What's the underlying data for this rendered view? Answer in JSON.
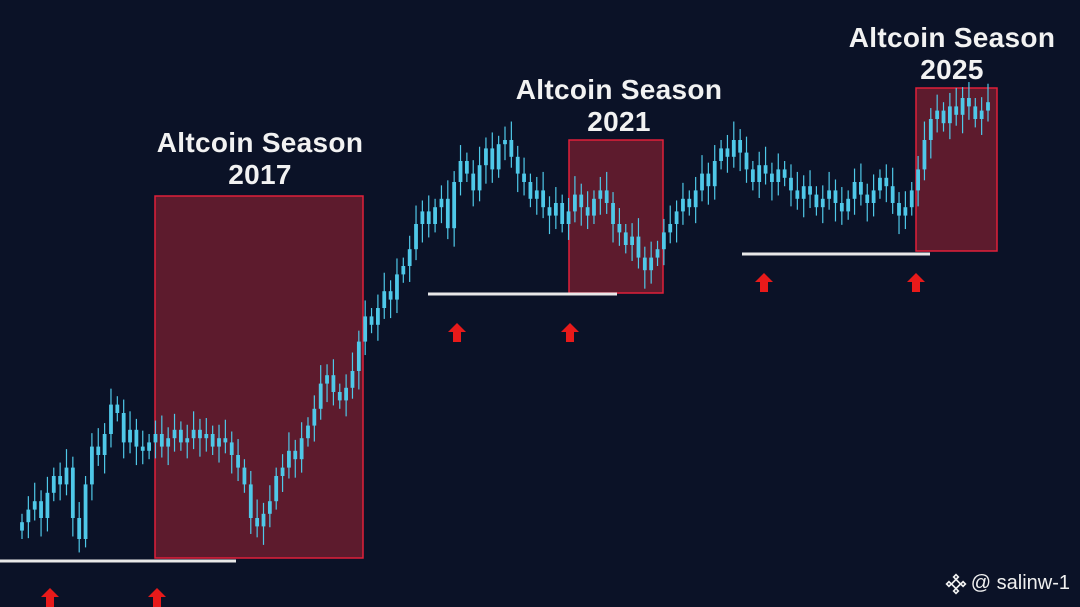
{
  "chart_data": {
    "type": "candlestick",
    "title": "",
    "xlabel": "",
    "ylabel": "",
    "grid": false,
    "colors": {
      "background": "#0b1227",
      "candle": "#4fc8e8",
      "season_box_fill": "#7a1f30",
      "season_box_stroke": "#e0203a",
      "support_line": "#e8e8e8",
      "arrow": "#e81a1a"
    },
    "candles_close": [
      0.09,
      0.12,
      0.14,
      0.1,
      0.16,
      0.2,
      0.18,
      0.22,
      0.1,
      0.05,
      0.18,
      0.27,
      0.25,
      0.3,
      0.37,
      0.35,
      0.28,
      0.31,
      0.27,
      0.26,
      0.28,
      0.3,
      0.27,
      0.29,
      0.31,
      0.28,
      0.29,
      0.31,
      0.29,
      0.3,
      0.27,
      0.29,
      0.28,
      0.25,
      0.22,
      0.18,
      0.1,
      0.08,
      0.11,
      0.14,
      0.2,
      0.22,
      0.26,
      0.24,
      0.29,
      0.32,
      0.36,
      0.42,
      0.44,
      0.4,
      0.38,
      0.41,
      0.45,
      0.52,
      0.58,
      0.56,
      0.6,
      0.64,
      0.62,
      0.68,
      0.7,
      0.74,
      0.8,
      0.83,
      0.8,
      0.84,
      0.86,
      0.79,
      0.9,
      0.95,
      0.92,
      0.88,
      0.94,
      0.98,
      0.93,
      0.99,
      1.0,
      0.96,
      0.92,
      0.9,
      0.86,
      0.88,
      0.84,
      0.82,
      0.85,
      0.8,
      0.83,
      0.87,
      0.84,
      0.82,
      0.86,
      0.88,
      0.85,
      0.8,
      0.78,
      0.75,
      0.77,
      0.72,
      0.69,
      0.72,
      0.74,
      0.78,
      0.8,
      0.83,
      0.86,
      0.84,
      0.88,
      0.92,
      0.89,
      0.95,
      0.98,
      0.96,
      1.0,
      0.97,
      0.93,
      0.9,
      0.94,
      0.92,
      0.9,
      0.93,
      0.91,
      0.88,
      0.86,
      0.89,
      0.87,
      0.84,
      0.86,
      0.88,
      0.85,
      0.83,
      0.86,
      0.9,
      0.87,
      0.85,
      0.88,
      0.91,
      0.89,
      0.85,
      0.82,
      0.84,
      0.88,
      0.93,
      1.0,
      1.05,
      1.07,
      1.04,
      1.08,
      1.06,
      1.1,
      1.08,
      1.05,
      1.07,
      1.09
    ],
    "seasons": [
      {
        "label_line1": "Altcoin Season",
        "label_line2": "2017"
      },
      {
        "label_line1": "Altcoin Season",
        "label_line2": "2021"
      },
      {
        "label_line1": "Altcoin Season",
        "label_line2": "2025"
      }
    ]
  },
  "watermark": {
    "icon": "binance-diamond-icon",
    "text": "@ salinw-1"
  }
}
